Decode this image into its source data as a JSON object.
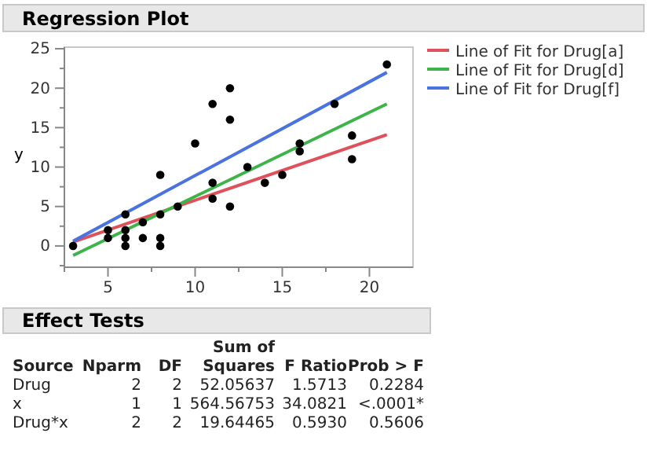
{
  "chart_data": {
    "type": "scatter",
    "title": "Regression Plot",
    "ylabel": "y",
    "xlim": [
      2.5,
      22.5
    ],
    "ylim": [
      -2.7,
      25.2
    ],
    "xticks": [
      {
        "value": 2.5,
        "label": null
      },
      5,
      {
        "value": 7.5,
        "label": null
      },
      10,
      {
        "value": 12.5,
        "label": null
      },
      15,
      {
        "value": 17.5,
        "label": null
      },
      20
    ],
    "yticks": [
      {
        "value": -2.5,
        "label": null
      },
      0,
      {
        "value": 2.5,
        "label": null
      },
      5,
      {
        "value": 7.5,
        "label": null
      },
      10,
      {
        "value": 12.5,
        "label": null
      },
      15,
      {
        "value": 17.5,
        "label": null
      },
      20,
      {
        "value": 22.5,
        "label": null
      },
      25
    ],
    "grid": false,
    "legend": "top right",
    "line_style": "solid",
    "series": [
      {
        "marker": "circle",
        "color": "#000000",
        "x": [
          3,
          5,
          5,
          6,
          6,
          6,
          6,
          7,
          7,
          8,
          8,
          8,
          8,
          9,
          10,
          11,
          11,
          12,
          13,
          14,
          15,
          16,
          16,
          19,
          19,
          11,
          12,
          12,
          18,
          21
        ],
        "values": [
          0,
          2,
          1,
          4,
          2,
          1,
          0,
          3,
          1,
          9,
          4,
          1,
          0,
          5,
          13,
          8,
          6,
          5,
          10,
          8,
          9,
          13,
          12,
          14,
          11,
          18,
          20,
          16,
          18,
          23
        ]
      },
      {
        "type": "line",
        "name": "Line of Fit for Drug[a]",
        "color": "#e0505a",
        "x": [
          3,
          21
        ],
        "values": [
          0.5,
          14.1
        ]
      },
      {
        "type": "line",
        "name": "Line of Fit for Drug[d]",
        "color": "#3cb44a",
        "x": [
          3,
          21
        ],
        "values": [
          -1.2,
          18
        ]
      },
      {
        "type": "line",
        "name": "Line of Fit for Drug[f]",
        "color": "#4a72e0",
        "x": [
          3,
          21
        ],
        "values": [
          0.6,
          22
        ]
      }
    ],
    "annotations": [
      "Effect Tests",
      "Source",
      "Nparm",
      "DF",
      "Sum of Squares",
      "F Ratio",
      "Prob > F",
      "Drug",
      "2",
      "2",
      "52.05637",
      "1.5713",
      "0.2284",
      "x",
      "1",
      "1",
      "564.56753",
      "34.0821",
      "<.0001*",
      "Drug*x",
      "2",
      "2",
      "19.64465",
      "0.5930",
      "0.5606"
    ]
  }
}
